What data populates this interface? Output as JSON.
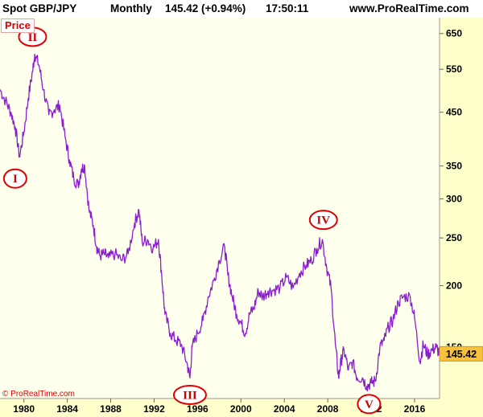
{
  "header": {
    "title": "Spot GBP/JPY",
    "period": "Monthly",
    "last": "145.42 (+0.94%)",
    "time": "17:50:11",
    "site": "www.ProRealTime.com"
  },
  "price_tag": "Price",
  "copyright": "© ProRealTime.com",
  "colors": {
    "line": "#8a1ecf",
    "plot_bg": "#ffffee",
    "axis_bg": "#ffffcc",
    "wave": "#e00000",
    "last_price_bg": "#f7c13a"
  },
  "chart_data": {
    "type": "line",
    "title": "Spot GBP/JPY",
    "xlabel": "",
    "ylabel": "",
    "scale": "log",
    "ylim": [
      118,
      700
    ],
    "xlim": [
      1977.8,
      2018.3
    ],
    "grid": false,
    "x_ticks": [
      "1980",
      "1984",
      "1988",
      "1992",
      "1996",
      "2000",
      "2004",
      "2008",
      "2012",
      "2016"
    ],
    "y_ticks": [
      150,
      200,
      250,
      300,
      350,
      450,
      550,
      650
    ],
    "last_price": 145.42,
    "series": [
      {
        "name": "GBP/JPY",
        "x": [
          1977.8,
          1978.3,
          1978.8,
          1979.2,
          1979.6,
          1980.0,
          1980.4,
          1980.8,
          1981.0,
          1981.4,
          1981.8,
          1982.3,
          1982.8,
          1983.3,
          1983.8,
          1984.2,
          1984.6,
          1985.0,
          1985.3,
          1985.6,
          1986.0,
          1986.4,
          1986.7,
          1987.0,
          1987.4,
          1987.8,
          1988.4,
          1989.0,
          1989.6,
          1990.2,
          1990.6,
          1990.9,
          1991.4,
          1991.9,
          1992.4,
          1992.7,
          1993.0,
          1993.5,
          1994.0,
          1994.5,
          1995.0,
          1995.3,
          1995.5,
          1996.0,
          1996.5,
          1997.0,
          1997.5,
          1998.0,
          1998.5,
          1998.8,
          1999.2,
          1999.6,
          2000.0,
          2000.4,
          2000.8,
          2001.2,
          2001.6,
          2002.0,
          2002.5,
          2003.0,
          2003.6,
          2004.2,
          2004.8,
          2005.4,
          2006.0,
          2006.5,
          2007.0,
          2007.5,
          2007.9,
          2008.3,
          2008.7,
          2009.0,
          2009.2,
          2009.5,
          2009.9,
          2010.3,
          2010.7,
          2011.2,
          2011.6,
          2012.0,
          2012.4,
          2012.8,
          2013.2,
          2013.6,
          2014.0,
          2014.5,
          2015.0,
          2015.6,
          2016.0,
          2016.5,
          2016.8,
          2017.2,
          2017.6,
          2018.0,
          2018.3
        ],
        "values": [
          500,
          475,
          450,
          420,
          365,
          410,
          480,
          545,
          590,
          560,
          500,
          445,
          455,
          465,
          400,
          360,
          330,
          320,
          345,
          350,
          285,
          265,
          240,
          230,
          232,
          228,
          232,
          225,
          232,
          268,
          285,
          245,
          248,
          238,
          248,
          210,
          175,
          160,
          155,
          152,
          140,
          130,
          150,
          160,
          170,
          190,
          205,
          225,
          240,
          210,
          190,
          175,
          168,
          160,
          175,
          180,
          195,
          190,
          195,
          196,
          198,
          208,
          198,
          212,
          220,
          225,
          238,
          248,
          218,
          198,
          152,
          130,
          140,
          148,
          135,
          140,
          130,
          130,
          125,
          127,
          128,
          150,
          155,
          165,
          170,
          185,
          190,
          190,
          172,
          140,
          152,
          145,
          148,
          150,
          145.42
        ]
      }
    ],
    "annotations": [
      {
        "label": "I",
        "x": 1979.2,
        "value": 330
      },
      {
        "label": "II",
        "x": 1980.8,
        "value": 640
      },
      {
        "label": "III",
        "x": 1995.3,
        "value": 120
      },
      {
        "label": "IV",
        "x": 2007.6,
        "value": 272
      },
      {
        "label": "V",
        "x": 2011.8,
        "value": 115
      }
    ]
  }
}
